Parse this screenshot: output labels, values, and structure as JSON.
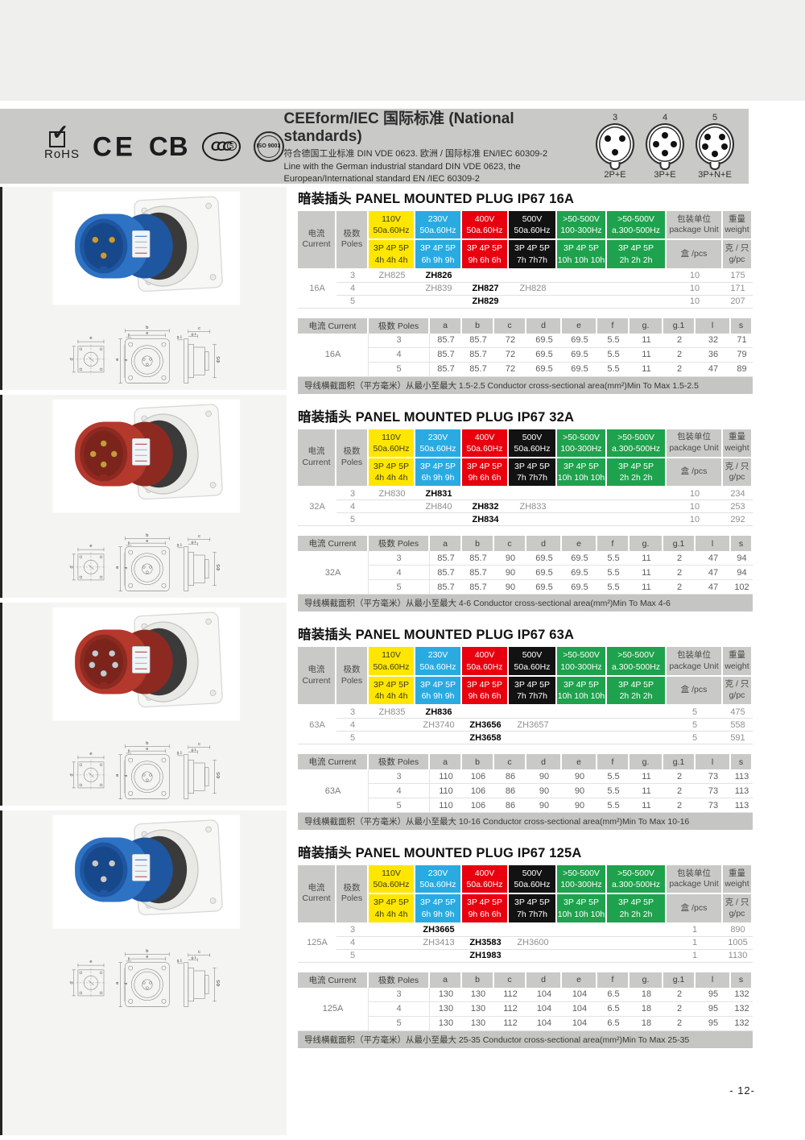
{
  "page": {
    "number": "- 12-"
  },
  "icons": {
    "rohs_check": "✓"
  },
  "certs": [
    {
      "label": "RoHS"
    },
    {
      "label": "CE"
    },
    {
      "label": "CB"
    },
    {
      "label": "CCC",
      "sub": "S"
    },
    {
      "label": "ISO 9001"
    }
  ],
  "header": {
    "title": "CEEform/IEC 国际标准 (National standards)",
    "line_zh": "符合德国工业标准 DIN VDE 0623. 欧洲 / 国际标准 EN/IEC 60309-2",
    "line_en1": "Line with the German industrial standard DIN VDE 0623, the",
    "line_en2": "European/International standard EN /IEC 60309-2",
    "pin_diagrams": [
      {
        "number": "3",
        "pins": 3,
        "label": "2P+E"
      },
      {
        "number": "4",
        "pins": 4,
        "label": "3P+E"
      },
      {
        "number": "5",
        "pins": 5,
        "label": "3P+N+E"
      }
    ]
  },
  "model_table": {
    "col_current": [
      "电流",
      "Current"
    ],
    "col_poles": [
      "极数",
      "Poles"
    ],
    "voltage_cols": [
      {
        "v1": "110V",
        "v2": "50a.60Hz",
        "p1": "3P 4P 5P",
        "p2": "4h 4h 4h",
        "bg": "#ffe600",
        "fg": "#3a3a1a"
      },
      {
        "v1": "230V",
        "v2": "50a.60Hz",
        "p1": "3P 4P 5P",
        "p2": "6h 9h 9h",
        "bg": "#29abe2",
        "fg": "#ffffff"
      },
      {
        "v1": "400V",
        "v2": "50a.60Hz",
        "p1": "3P 4P 5P",
        "p2": "9h 6h 6h",
        "bg": "#e8000f",
        "fg": "#ffffff"
      },
      {
        "v1": "500V",
        "v2": "50a.60Hz",
        "p1": "3P 4P 5P",
        "p2": "7h 7h7h",
        "bg": "#121212",
        "fg": "#ffffff"
      },
      {
        "v1": ">50-500V",
        "v2": "100-300Hz",
        "p1": "3P 4P 5P",
        "p2": "10h 10h 10h",
        "bg": "#1fa24d",
        "fg": "#ffffff"
      },
      {
        "v1": ">50-500V",
        "v2": "a.300-500Hz",
        "p1": "3P 4P 5P",
        "p2": "2h 2h 2h",
        "bg": "#1fa24d",
        "fg": "#ffffff"
      }
    ],
    "col_package": [
      "包装单位",
      "package Unit"
    ],
    "package_sub": "盒 /pcs",
    "col_weight": [
      "重量",
      "weight"
    ],
    "weight_sub": [
      "克 / 只",
      "g/pc"
    ]
  },
  "dim_table": {
    "headers": [
      "电流 Current",
      "极数 Poles",
      "a",
      "b",
      "c",
      "d",
      "e",
      "f",
      "g.",
      "g.1",
      "l",
      "s"
    ]
  },
  "drawing_labels": {
    "a": "a",
    "b": "b",
    "c": "c",
    "d": "d",
    "e": "e",
    "f": "f",
    "g1": "g.1",
    "s": "ΦS"
  },
  "sections": [
    {
      "title": "暗装插头 PANEL MOUNTED PLUG IP67 16A",
      "current": "16A",
      "plug": {
        "pins": 3,
        "body": "#2e72c4",
        "shade": "#1e56a0",
        "recess": "#17488c",
        "pin_metal": "#c79b3b"
      },
      "rows": [
        {
          "poles": "3",
          "models": [
            "ZH825",
            "ZH826",
            "",
            "",
            "",
            ""
          ],
          "bold_col": 1,
          "unit": "10",
          "weight": "175"
        },
        {
          "poles": "4",
          "models": [
            "",
            "ZH839",
            "ZH827",
            "ZH828",
            "",
            ""
          ],
          "bold_col": 2,
          "unit": "10",
          "weight": "171"
        },
        {
          "poles": "5",
          "models": [
            "",
            "",
            "ZH829",
            "",
            "",
            ""
          ],
          "bold_col": 2,
          "unit": "10",
          "weight": "207"
        }
      ],
      "dims": [
        [
          "3",
          "85.7",
          "85.7",
          "72",
          "69.5",
          "69.5",
          "5.5",
          "11",
          "2",
          "32",
          "71"
        ],
        [
          "4",
          "85.7",
          "85.7",
          "72",
          "69.5",
          "69.5",
          "5.5",
          "11",
          "2",
          "36",
          "79"
        ],
        [
          "5",
          "85.7",
          "85.7",
          "72",
          "69.5",
          "69.5",
          "5.5",
          "11",
          "2",
          "47",
          "89"
        ]
      ],
      "note": "导线横截面积（平方毫米）从最小至最大 1.5-2.5 Conductor cross-sectional area(mm²)Min To Max 1.5-2.5"
    },
    {
      "title": "暗装插头 PANEL MOUNTED PLUG IP67 32A",
      "current": "32A",
      "plug": {
        "pins": 4,
        "body": "#b5382c",
        "shade": "#8c2a21",
        "recess": "#7c241c",
        "pin_metal": "#c79b3b"
      },
      "rows": [
        {
          "poles": "3",
          "models": [
            "ZH830",
            "ZH831",
            "",
            "",
            "",
            ""
          ],
          "bold_col": 1,
          "unit": "10",
          "weight": "234"
        },
        {
          "poles": "4",
          "models": [
            "",
            "ZH840",
            "ZH832",
            "ZH833",
            "",
            ""
          ],
          "bold_col": 2,
          "unit": "10",
          "weight": "253"
        },
        {
          "poles": "5",
          "models": [
            "",
            "",
            "ZH834",
            "",
            "",
            ""
          ],
          "bold_col": 2,
          "unit": "10",
          "weight": "292"
        }
      ],
      "dims": [
        [
          "3",
          "85.7",
          "85.7",
          "90",
          "69.5",
          "69.5",
          "5.5",
          "11",
          "2",
          "47",
          "94"
        ],
        [
          "4",
          "85.7",
          "85.7",
          "90",
          "69.5",
          "69.5",
          "5.5",
          "11",
          "2",
          "47",
          "94"
        ],
        [
          "5",
          "85.7",
          "85.7",
          "90",
          "69.5",
          "69.5",
          "5.5",
          "11",
          "2",
          "47",
          "102"
        ]
      ],
      "note": "导线横截面积（平方毫米）从最小至最大 4-6 Conductor cross-sectional area(mm²)Min To Max 4-6"
    },
    {
      "title": "暗装插头 PANEL MOUNTED PLUG IP67 63A",
      "current": "63A",
      "plug": {
        "pins": 5,
        "body": "#b5382c",
        "shade": "#8c2a21",
        "recess": "#7c241c",
        "pin_metal": "#c6cacd"
      },
      "rows": [
        {
          "poles": "3",
          "models": [
            "ZH835",
            "ZH836",
            "",
            "",
            "",
            ""
          ],
          "bold_col": 1,
          "unit": "5",
          "weight": "475"
        },
        {
          "poles": "4",
          "models": [
            "",
            "ZH3740",
            "ZH3656",
            "ZH3657",
            "",
            ""
          ],
          "bold_col": 2,
          "unit": "5",
          "weight": "558"
        },
        {
          "poles": "5",
          "models": [
            "",
            "",
            "ZH3658",
            "",
            "",
            ""
          ],
          "bold_col": 2,
          "unit": "5",
          "weight": "591"
        }
      ],
      "dims": [
        [
          "3",
          "110",
          "106",
          "86",
          "90",
          "90",
          "5.5",
          "11",
          "2",
          "73",
          "113"
        ],
        [
          "4",
          "110",
          "106",
          "86",
          "90",
          "90",
          "5.5",
          "11",
          "2",
          "73",
          "113"
        ],
        [
          "5",
          "110",
          "106",
          "86",
          "90",
          "90",
          "5.5",
          "11",
          "2",
          "73",
          "113"
        ]
      ],
      "note": "导线横截面积（平方毫米）从最小至最大 10-16 Conductor cross-sectional area(mm²)Min To Max 10-16"
    },
    {
      "title": "暗装插头 PANEL MOUNTED PLUG IP67 125A",
      "current": "125A",
      "plug": {
        "pins": 3,
        "body": "#2e72c4",
        "shade": "#1e56a0",
        "recess": "#17488c",
        "pin_metal": "#c6cacd"
      },
      "rows": [
        {
          "poles": "3",
          "models": [
            "",
            "ZH3665",
            "",
            "",
            "",
            ""
          ],
          "bold_col": 1,
          "unit": "1",
          "weight": "890"
        },
        {
          "poles": "4",
          "models": [
            "",
            "ZH3413",
            "ZH3583",
            "ZH3600",
            "",
            ""
          ],
          "bold_col": 2,
          "unit": "1",
          "weight": "1005"
        },
        {
          "poles": "5",
          "models": [
            "",
            "",
            "ZH1983",
            "",
            "",
            ""
          ],
          "bold_col": 2,
          "unit": "1",
          "weight": "1130"
        }
      ],
      "dims": [
        [
          "3",
          "130",
          "130",
          "112",
          "104",
          "104",
          "6.5",
          "18",
          "2",
          "95",
          "132"
        ],
        [
          "4",
          "130",
          "130",
          "112",
          "104",
          "104",
          "6.5",
          "18",
          "2",
          "95",
          "132"
        ],
        [
          "5",
          "130",
          "130",
          "112",
          "104",
          "104",
          "6.5",
          "18",
          "2",
          "95",
          "132"
        ]
      ],
      "note": "导线横截面积（平方毫米）从最小至最大 25-35 Conductor cross-sectional area(mm²)Min To Max 25-35"
    }
  ]
}
